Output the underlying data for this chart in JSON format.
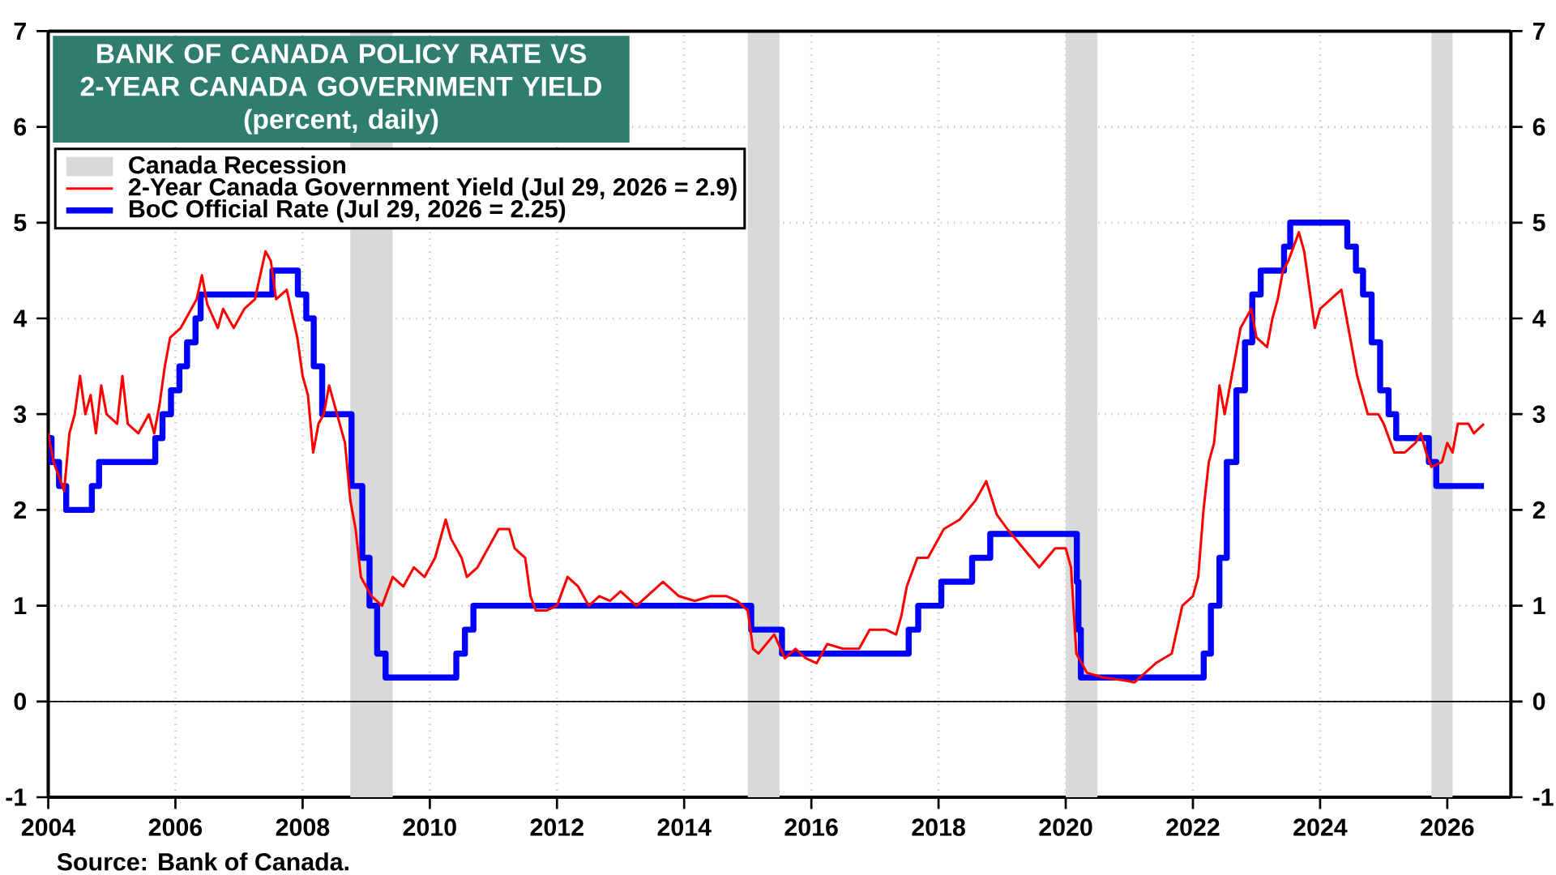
{
  "chart_data": {
    "type": "line",
    "title": "BANK OF CANADA POLICY RATE VS 2-YEAR CANADA GOVERNMENT YIELD",
    "subtitle": "(percent, daily)",
    "annotations": [
      "Source: Bank of Canada."
    ],
    "xlim": [
      "2004",
      "2027"
    ],
    "xticks": [
      "2004",
      "2006",
      "2008",
      "2010",
      "2012",
      "2014",
      "2016",
      "2018",
      "2020",
      "2022",
      "2024",
      "2026"
    ],
    "ylim": [
      -1,
      7
    ],
    "yticks": [
      -1,
      0,
      1,
      2,
      3,
      4,
      5,
      6,
      7
    ],
    "y2lim": [
      -1,
      7
    ],
    "y2ticks": [
      -1,
      0,
      1,
      2,
      3,
      4,
      5,
      6,
      7
    ],
    "grid": true,
    "legend": "top left",
    "bands": [
      {
        "axis": "x",
        "from": "2008-10",
        "to": "2009-06",
        "label": "Canada Recession",
        "color": "#d9d9d9"
      },
      {
        "axis": "x",
        "from": "2015-01",
        "to": "2015-07",
        "color": "#d9d9d9"
      },
      {
        "axis": "x",
        "from": "2020-01",
        "to": "2020-07",
        "color": "#d9d9d9"
      },
      {
        "axis": "x",
        "from": "2025-10",
        "to": "2026-02",
        "color": "#d9d9d9"
      }
    ],
    "ref_lines": [
      {
        "axis": "y",
        "value": 0,
        "color": "#000000"
      }
    ],
    "series": [
      {
        "name": "2-Year Canada Government Yield (Jul 29, 2026 = 2.9)",
        "type": "line",
        "color": "#ff0000",
        "x": [
          "2004-01",
          "2004-02",
          "2004-04",
          "2004-05",
          "2004-06",
          "2004-07",
          "2004-08",
          "2004-09",
          "2004-10",
          "2004-11",
          "2004-12",
          "2005-02",
          "2005-03",
          "2005-04",
          "2005-06",
          "2005-08",
          "2005-09",
          "2005-10",
          "2005-11",
          "2005-12",
          "2006-02",
          "2006-04",
          "2006-05",
          "2006-06",
          "2006-07",
          "2006-09",
          "2006-10",
          "2006-12",
          "2007-02",
          "2007-04",
          "2007-06",
          "2007-07",
          "2007-08",
          "2007-10",
          "2007-12",
          "2008-01",
          "2008-02",
          "2008-03",
          "2008-04",
          "2008-05",
          "2008-06",
          "2008-07",
          "2008-08",
          "2008-09",
          "2008-10",
          "2008-11",
          "2008-12",
          "2009-02",
          "2009-04",
          "2009-06",
          "2009-08",
          "2009-10",
          "2009-12",
          "2010-02",
          "2010-04",
          "2010-05",
          "2010-07",
          "2010-08",
          "2010-10",
          "2010-12",
          "2011-02",
          "2011-04",
          "2011-05",
          "2011-07",
          "2011-08",
          "2011-09",
          "2011-11",
          "2012-01",
          "2012-03",
          "2012-05",
          "2012-07",
          "2012-09",
          "2012-11",
          "2013-01",
          "2013-04",
          "2013-06",
          "2013-09",
          "2013-12",
          "2014-03",
          "2014-06",
          "2014-09",
          "2014-11",
          "2015-01",
          "2015-02",
          "2015-03",
          "2015-06",
          "2015-08",
          "2015-10",
          "2015-12",
          "2016-02",
          "2016-04",
          "2016-07",
          "2016-10",
          "2016-12",
          "2017-03",
          "2017-05",
          "2017-06",
          "2017-07",
          "2017-09",
          "2017-11",
          "2018-02",
          "2018-05",
          "2018-08",
          "2018-10",
          "2018-12",
          "2019-02",
          "2019-05",
          "2019-08",
          "2019-11",
          "2020-01",
          "2020-02",
          "2020-03",
          "2020-05",
          "2020-08",
          "2020-12",
          "2021-02",
          "2021-04",
          "2021-06",
          "2021-09",
          "2021-11",
          "2022-01",
          "2022-02",
          "2022-03",
          "2022-04",
          "2022-05",
          "2022-06",
          "2022-07",
          "2022-08",
          "2022-10",
          "2022-11",
          "2022-12",
          "2023-01",
          "2023-03",
          "2023-04",
          "2023-05",
          "2023-06",
          "2023-07",
          "2023-09",
          "2023-10",
          "2023-11",
          "2023-12",
          "2024-01",
          "2024-03",
          "2024-05",
          "2024-06",
          "2024-08",
          "2024-09",
          "2024-10",
          "2024-12",
          "2025-01",
          "2025-03",
          "2025-05",
          "2025-07",
          "2025-08",
          "2025-09",
          "2025-10",
          "2025-12",
          "2026-01",
          "2026-02",
          "2026-03",
          "2026-05",
          "2026-06",
          "2026-07-29"
        ],
        "values": [
          2.8,
          2.5,
          2.2,
          2.8,
          3.0,
          3.4,
          3.0,
          3.2,
          2.8,
          3.3,
          3.0,
          2.9,
          3.4,
          2.9,
          2.8,
          3.0,
          2.8,
          3.1,
          3.5,
          3.8,
          3.9,
          4.1,
          4.2,
          4.45,
          4.15,
          3.9,
          4.1,
          3.9,
          4.1,
          4.2,
          4.7,
          4.6,
          4.2,
          4.3,
          3.8,
          3.4,
          3.2,
          2.6,
          2.9,
          3.0,
          3.3,
          3.1,
          2.9,
          2.7,
          2.1,
          1.8,
          1.3,
          1.1,
          1.0,
          1.3,
          1.2,
          1.4,
          1.3,
          1.5,
          1.9,
          1.7,
          1.5,
          1.3,
          1.4,
          1.6,
          1.8,
          1.8,
          1.6,
          1.5,
          1.1,
          0.95,
          0.95,
          1.0,
          1.3,
          1.2,
          1.0,
          1.1,
          1.05,
          1.15,
          1.0,
          1.1,
          1.25,
          1.1,
          1.05,
          1.1,
          1.1,
          1.05,
          0.95,
          0.55,
          0.5,
          0.7,
          0.45,
          0.55,
          0.45,
          0.4,
          0.6,
          0.55,
          0.55,
          0.75,
          0.75,
          0.7,
          0.9,
          1.2,
          1.5,
          1.5,
          1.8,
          1.9,
          2.1,
          2.3,
          1.95,
          1.8,
          1.6,
          1.4,
          1.6,
          1.6,
          1.4,
          0.5,
          0.3,
          0.25,
          0.22,
          0.2,
          0.3,
          0.4,
          0.5,
          1.0,
          1.1,
          1.3,
          2.0,
          2.5,
          2.7,
          3.3,
          3.0,
          3.3,
          3.9,
          4.0,
          4.1,
          3.8,
          3.7,
          4.0,
          4.2,
          4.5,
          4.6,
          4.9,
          4.7,
          4.3,
          3.9,
          4.1,
          4.2,
          4.3,
          4.0,
          3.4,
          3.2,
          3.0,
          3.0,
          2.9,
          2.6,
          2.6,
          2.7,
          2.8,
          2.6,
          2.45,
          2.5,
          2.7,
          2.6,
          2.9,
          2.9,
          2.8,
          2.9
        ]
      },
      {
        "name": "BoC Official Rate (Jul 29, 2026 = 2.25)",
        "type": "step",
        "color": "#0000ff",
        "x": [
          "2004-01-01",
          "2004-01-20",
          "2004-03-02",
          "2004-04-13",
          "2004-09-08",
          "2004-10-19",
          "2005-09-07",
          "2005-10-18",
          "2005-12-06",
          "2006-01-24",
          "2006-03-07",
          "2006-04-25",
          "2006-05-24",
          "2007-07-10",
          "2007-12-04",
          "2008-01-22",
          "2008-03-04",
          "2008-04-22",
          "2008-10-08",
          "2008-12-09",
          "2009-01-20",
          "2009-03-03",
          "2009-04-21",
          "2010-06-01",
          "2010-07-20",
          "2010-09-08",
          "2015-01-21",
          "2015-07-15",
          "2017-07-12",
          "2017-09-06",
          "2018-01-17",
          "2018-07-11",
          "2018-10-24",
          "2020-03-04",
          "2020-03-13",
          "2020-03-27",
          "2022-03-02",
          "2022-04-13",
          "2022-06-01",
          "2022-07-13",
          "2022-09-07",
          "2022-10-26",
          "2022-12-07",
          "2023-01-25",
          "2023-06-07",
          "2023-07-12",
          "2024-06-05",
          "2024-07-24",
          "2024-09-04",
          "2024-10-23",
          "2024-12-11",
          "2025-01-29",
          "2025-03-12",
          "2025-09-17",
          "2025-10-29",
          "2026-07-29"
        ],
        "values": [
          2.75,
          2.5,
          2.25,
          2.0,
          2.25,
          2.5,
          2.75,
          3.0,
          3.25,
          3.5,
          3.75,
          4.0,
          4.25,
          4.5,
          4.25,
          4.0,
          3.5,
          3.0,
          2.25,
          1.5,
          1.0,
          0.5,
          0.25,
          0.5,
          0.75,
          1.0,
          0.75,
          0.5,
          0.75,
          1.0,
          1.25,
          1.5,
          1.75,
          1.25,
          0.75,
          0.25,
          0.5,
          1.0,
          1.5,
          2.5,
          3.25,
          3.75,
          4.25,
          4.5,
          4.75,
          5.0,
          4.75,
          4.5,
          4.25,
          3.75,
          3.25,
          3.0,
          2.75,
          2.5,
          2.25,
          2.25
        ]
      }
    ]
  }
}
